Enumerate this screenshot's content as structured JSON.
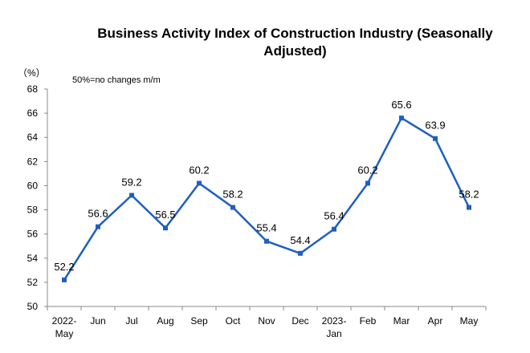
{
  "chart_data": {
    "type": "line",
    "title": "Business Activity Index of Construction Industry (Seasonally Adjusted)",
    "unit_label": "（%）",
    "annotation": "50%=no changes m/m",
    "categories": [
      [
        "2022-",
        "May"
      ],
      [
        "Jun"
      ],
      [
        "Jul"
      ],
      [
        "Aug"
      ],
      [
        "Sep"
      ],
      [
        "Oct"
      ],
      [
        "Nov"
      ],
      [
        "Dec"
      ],
      [
        "2023-",
        "Jan"
      ],
      [
        "Feb"
      ],
      [
        "Mar"
      ],
      [
        "Apr"
      ],
      [
        "May"
      ]
    ],
    "values": [
      52.2,
      56.6,
      59.2,
      56.5,
      60.2,
      58.2,
      55.4,
      54.4,
      56.4,
      60.2,
      65.6,
      63.9,
      58.2
    ],
    "ylim": [
      50,
      68
    ],
    "yticks": [
      50,
      52,
      54,
      56,
      58,
      60,
      62,
      64,
      66,
      68
    ],
    "line_color": "#1f5fbf",
    "grid": false,
    "legend": "none"
  }
}
